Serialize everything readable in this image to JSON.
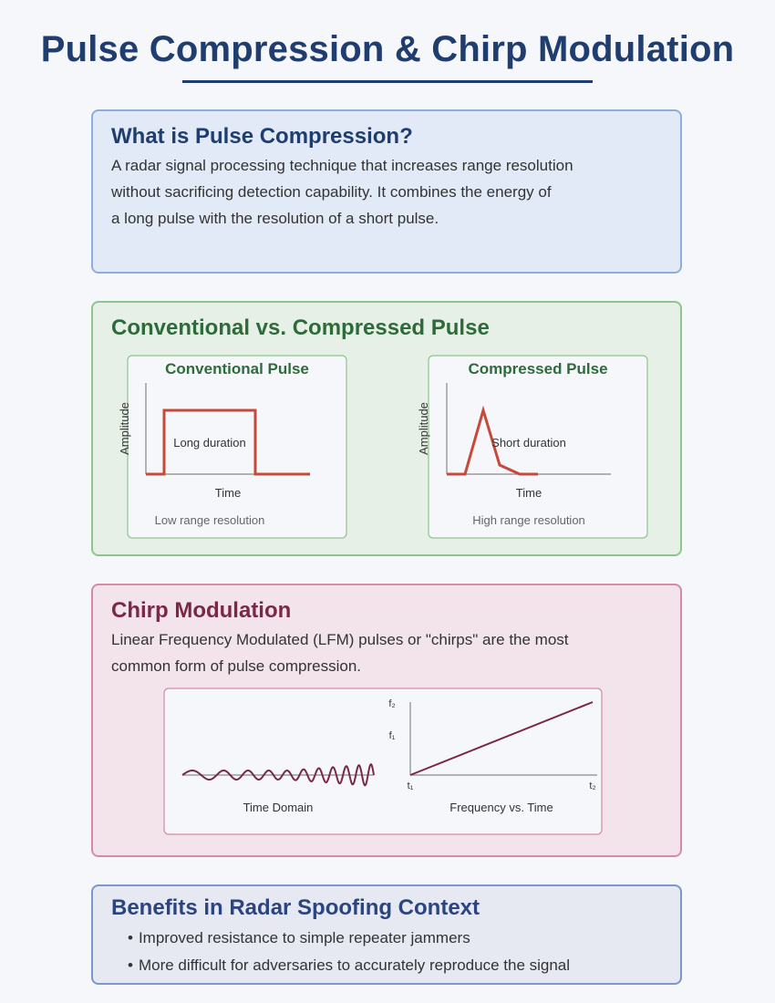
{
  "title": "Pulse Compression & Chirp Modulation",
  "what": {
    "heading": "What is Pulse Compression?",
    "lines": [
      "A radar signal processing technique that increases range resolution",
      "without sacrificing detection capability. It combines the energy of",
      "a long pulse with the resolution of a short pulse."
    ]
  },
  "compare": {
    "heading": "Conventional vs. Compressed Pulse",
    "conventional": {
      "title": "Conventional Pulse",
      "ylabel": "Amplitude",
      "xlabel": "Time",
      "annotation": "Long duration",
      "caption": "Low range resolution"
    },
    "compressed": {
      "title": "Compressed Pulse",
      "ylabel": "Amplitude",
      "xlabel": "Time",
      "annotation": "Short duration",
      "caption": "High range resolution"
    }
  },
  "chirp": {
    "heading": "Chirp Modulation",
    "lines": [
      "Linear Frequency Modulated (LFM) pulses or \"chirps\" are the most",
      "common form of pulse compression."
    ],
    "time_domain_label": "Time Domain",
    "freq_label": "Frequency vs. Time",
    "f2": "f₂",
    "f1": "f₁",
    "t1": "t₁",
    "t2": "t₂"
  },
  "benefits": {
    "heading": "Benefits in Radar Spoofing Context",
    "items": [
      "Improved resistance to simple repeater jammers",
      "More difficult for adversaries to accurately reproduce the signal"
    ]
  },
  "colors": {
    "pulse": "#c8483a",
    "chirp": "#7a2848",
    "axis": "#888888"
  }
}
